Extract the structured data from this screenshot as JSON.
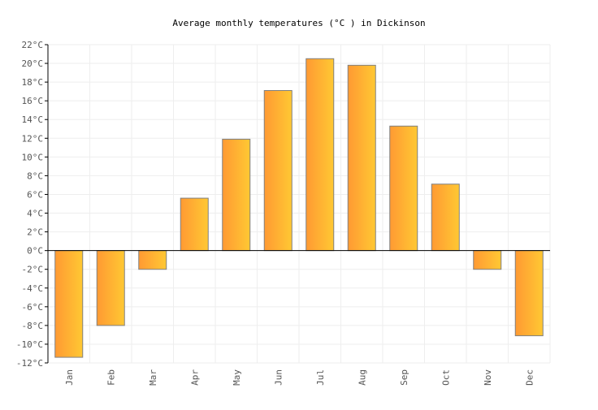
{
  "chart_data": {
    "type": "bar",
    "title": "Average monthly temperatures (°C ) in Dickinson",
    "xlabel": "",
    "ylabel": "",
    "unit": "°C",
    "ylim": [
      -12,
      22
    ],
    "ytick_step": 2,
    "grid": true,
    "categories": [
      "Jan",
      "Feb",
      "Mar",
      "Apr",
      "May",
      "Jun",
      "Jul",
      "Aug",
      "Sep",
      "Oct",
      "Nov",
      "Dec"
    ],
    "values": [
      -11.4,
      -8.0,
      -2.0,
      5.6,
      11.9,
      17.1,
      20.5,
      19.8,
      13.3,
      7.1,
      -2.0,
      -9.1
    ],
    "colors": {
      "bar_start": "#ff9a33",
      "bar_end": "#ffc833",
      "bar_stroke": "#808080",
      "grid": "#eeeeee",
      "axis": "#000000",
      "text": "#555555"
    }
  }
}
